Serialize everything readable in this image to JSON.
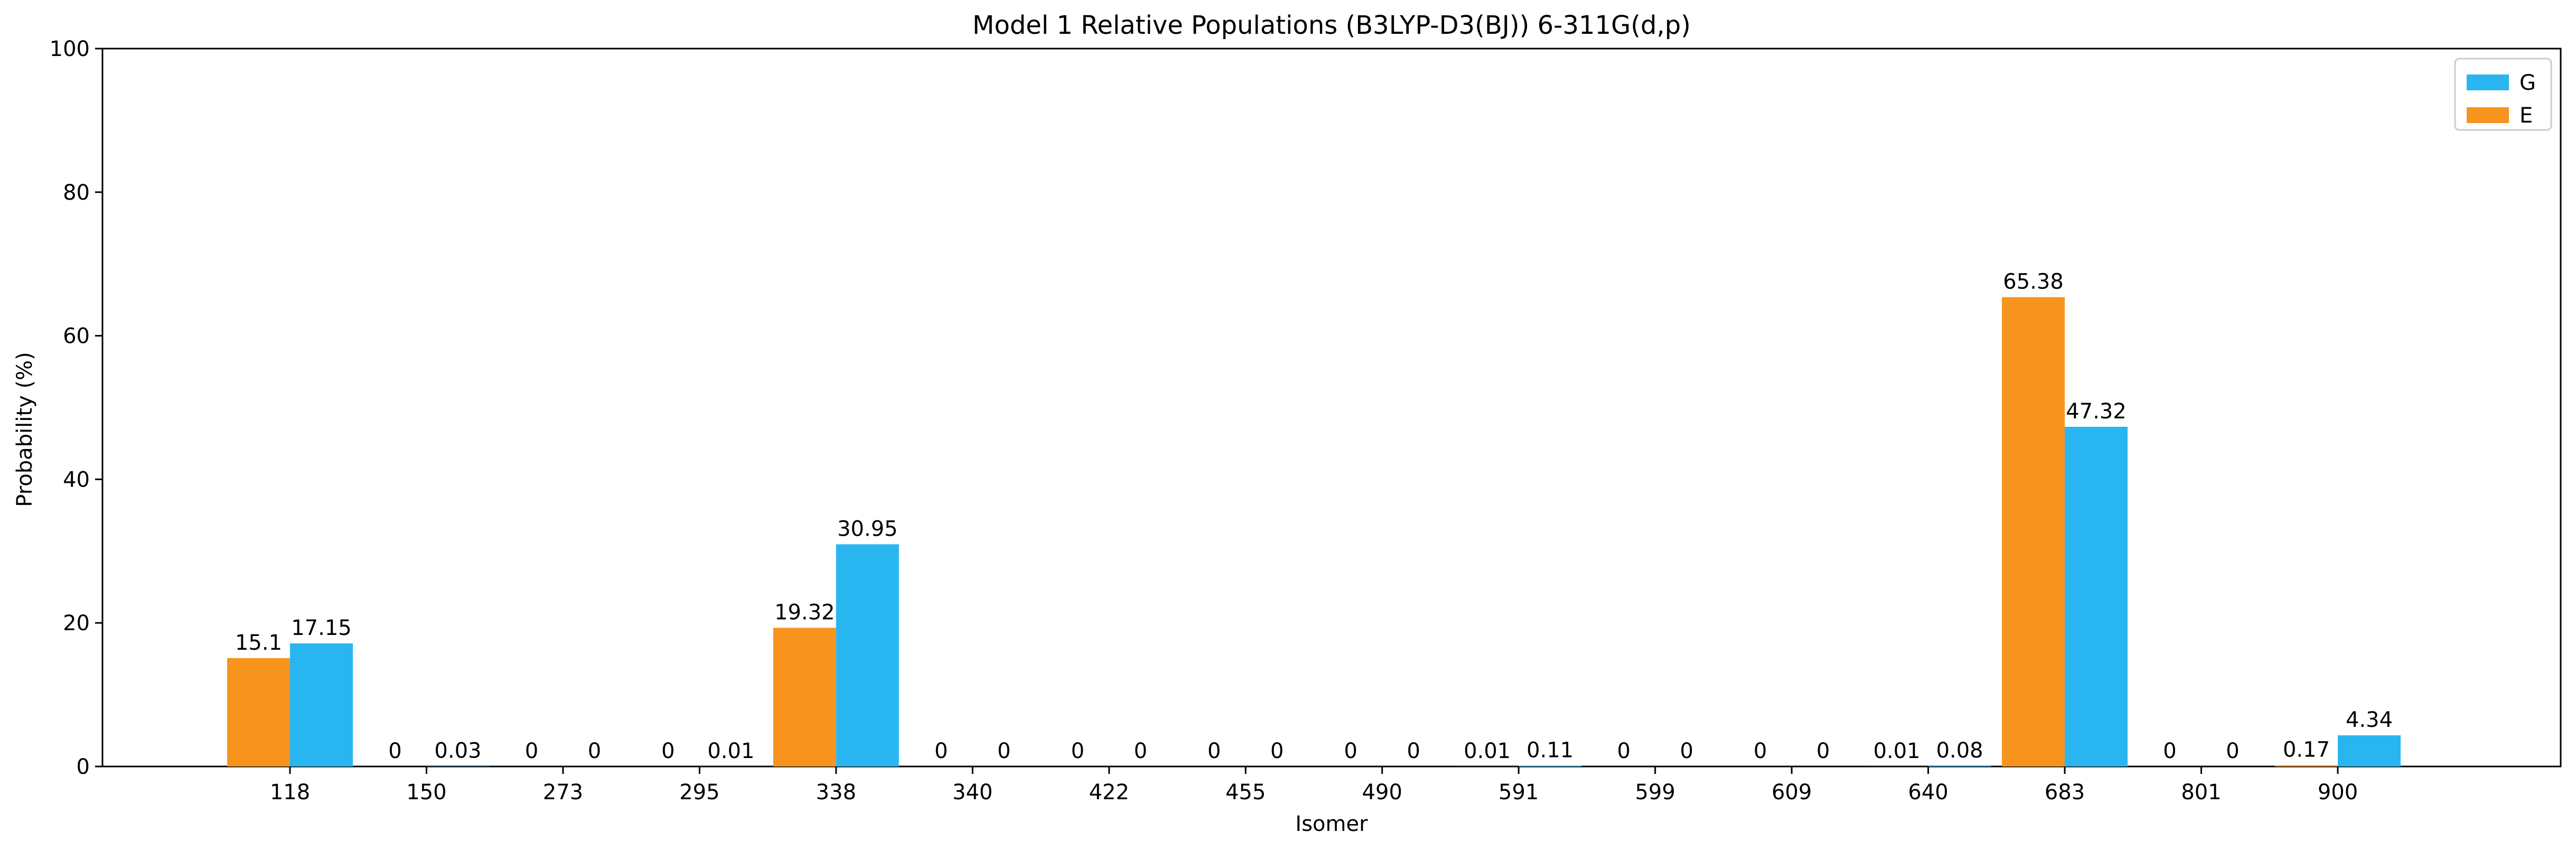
{
  "chart_data": {
    "type": "bar",
    "title": "Model 1 Relative Populations (B3LYP-D3(BJ)) 6-311G(d,p)",
    "xlabel": "Isomer",
    "ylabel": "Probability (%)",
    "ylim": [
      0,
      100
    ],
    "yticks": [
      0,
      20,
      40,
      60,
      80,
      100
    ],
    "categories": [
      "118",
      "150",
      "273",
      "295",
      "338",
      "340",
      "422",
      "455",
      "490",
      "591",
      "599",
      "609",
      "640",
      "683",
      "801",
      "900"
    ],
    "series": [
      {
        "name": "E",
        "color": "#F7941D",
        "values": [
          15.1,
          0,
          0,
          0,
          19.32,
          0,
          0,
          0,
          0,
          0.01,
          0,
          0,
          0.01,
          65.38,
          0,
          0.17
        ],
        "labels": [
          "15.1",
          "0",
          "0",
          "0",
          "19.32",
          "0",
          "0",
          "0",
          "0",
          "0.01",
          "0",
          "0",
          "0.01",
          "65.38",
          "0",
          "0.17"
        ]
      },
      {
        "name": "G",
        "color": "#29B6F0",
        "values": [
          17.15,
          0.03,
          0,
          0.01,
          30.95,
          0,
          0,
          0,
          0,
          0.11,
          0,
          0,
          0.08,
          47.32,
          0,
          4.34
        ],
        "labels": [
          "17.15",
          "0.03",
          "0",
          "0.01",
          "30.95",
          "0",
          "0",
          "0",
          "0",
          "0.11",
          "0",
          "0",
          "0.08",
          "47.32",
          "0",
          "4.34"
        ]
      }
    ],
    "legend": {
      "position": "top-right",
      "order": [
        "G",
        "E"
      ]
    },
    "grid": false
  }
}
